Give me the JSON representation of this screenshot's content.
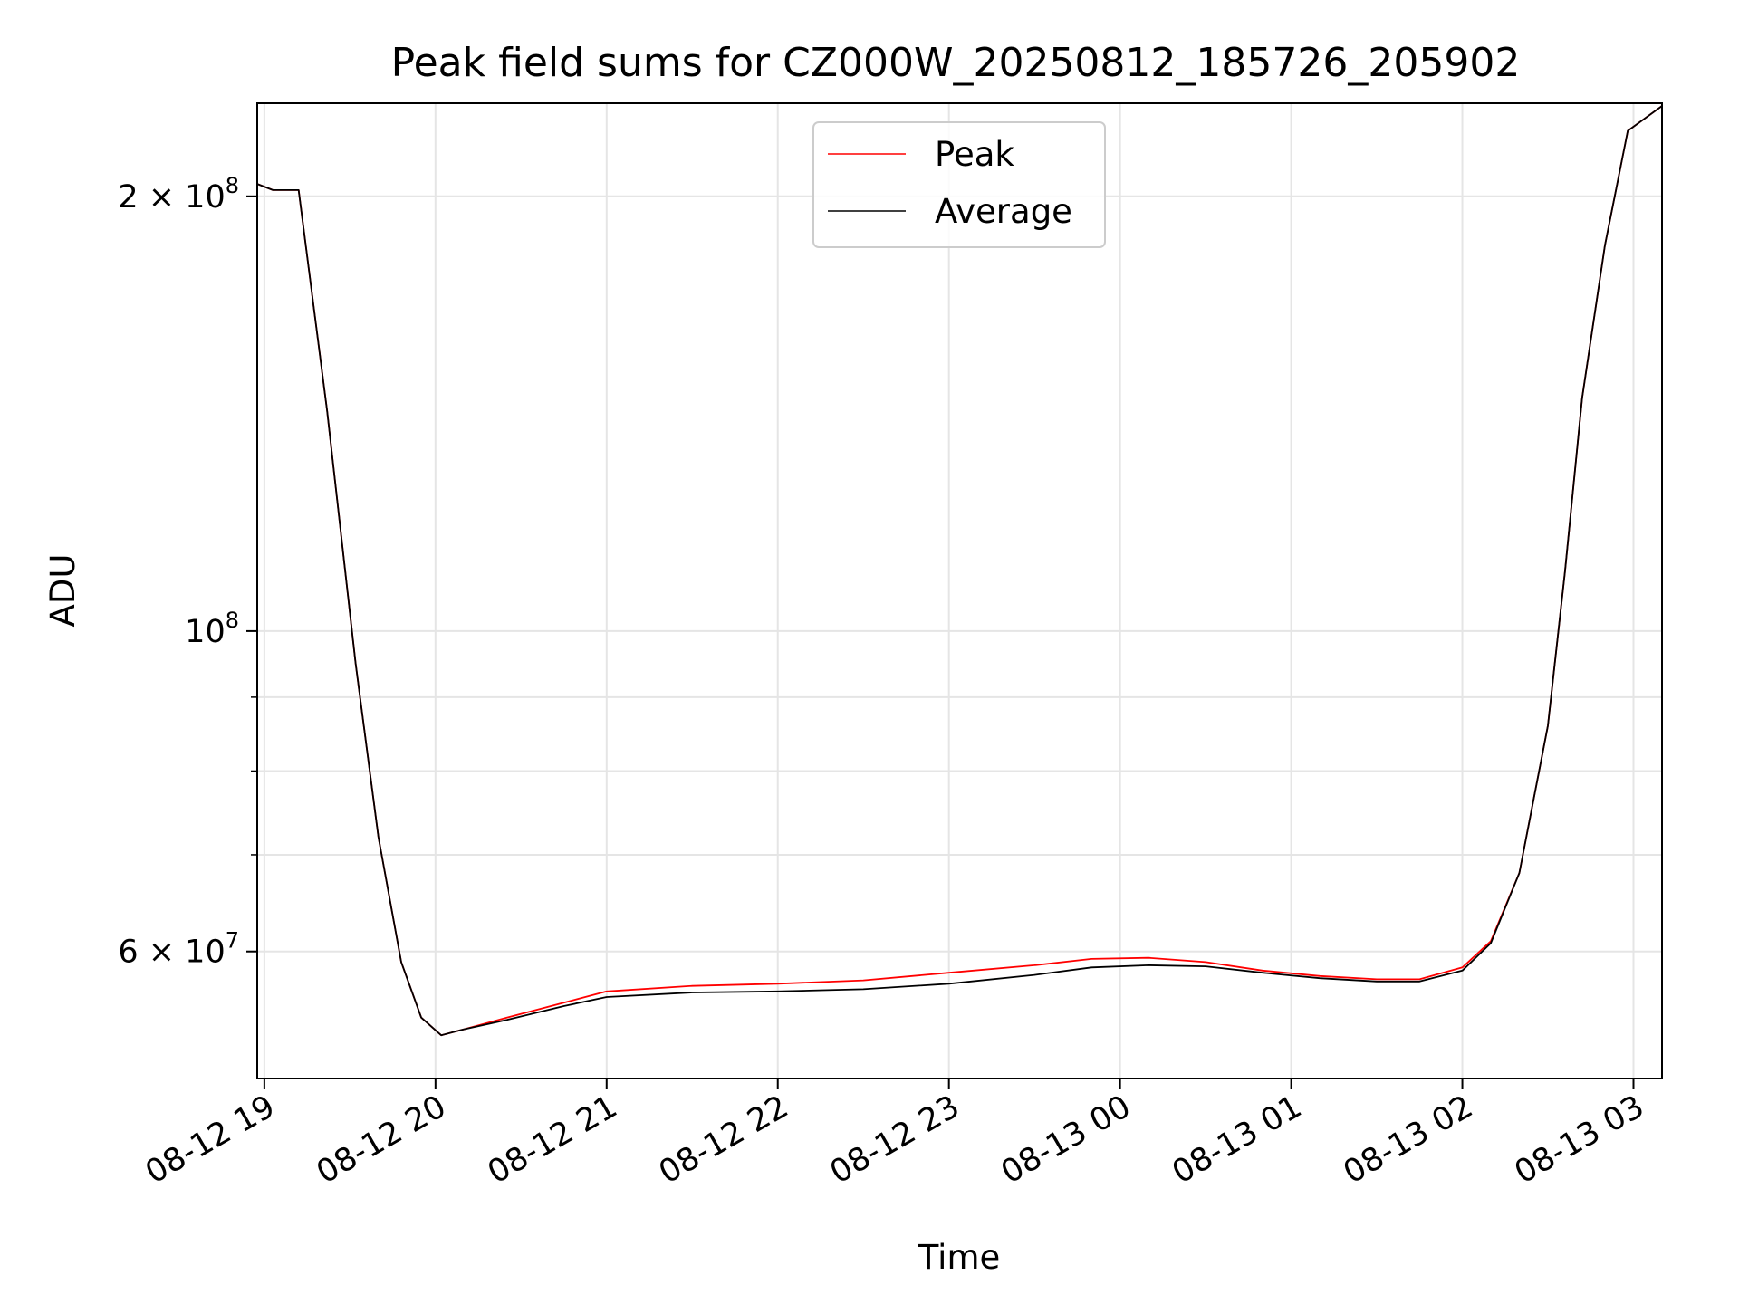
{
  "chart_data": {
    "type": "line",
    "title": "Peak field sums for CZ000W_20250812_185726_205902",
    "xlabel": "Time",
    "ylabel": "ADU",
    "y_scale": "log",
    "ylim": [
      49000000,
      232000000
    ],
    "xlim": [
      "2025-08-12 18:57:30",
      "2025-08-13 03:10:00"
    ],
    "grid": true,
    "legend_position": "upper center",
    "x_ticks": [
      {
        "value": "2025-08-12 19:00",
        "label": "08-12 19"
      },
      {
        "value": "2025-08-12 20:00",
        "label": "08-12 20"
      },
      {
        "value": "2025-08-12 21:00",
        "label": "08-12 21"
      },
      {
        "value": "2025-08-12 22:00",
        "label": "08-12 22"
      },
      {
        "value": "2025-08-12 23:00",
        "label": "08-12 23"
      },
      {
        "value": "2025-08-13 00:00",
        "label": "08-13 00"
      },
      {
        "value": "2025-08-13 01:00",
        "label": "08-13 01"
      },
      {
        "value": "2025-08-13 02:00",
        "label": "08-13 02"
      },
      {
        "value": "2025-08-13 03:00",
        "label": "08-13 03"
      }
    ],
    "y_ticks": [
      {
        "value": 200000000,
        "base": "2 × 10",
        "exp": "8"
      },
      {
        "value": 100000000,
        "base": "10",
        "exp": "8"
      },
      {
        "value": 60000000,
        "base": "6 × 10",
        "exp": "7"
      }
    ],
    "y_minor_ticks": [
      70000000,
      80000000,
      90000000
    ],
    "series": [
      {
        "name": "Peak",
        "color": "#ff0000",
        "x": [
          "2025-08-12 18:57:30",
          "2025-08-12 19:03:00",
          "2025-08-12 19:12:00",
          "2025-08-12 19:22:00",
          "2025-08-12 19:32:00",
          "2025-08-12 19:40:00",
          "2025-08-12 19:48:00",
          "2025-08-12 19:55:00",
          "2025-08-12 20:02:00",
          "2025-08-12 20:10:00",
          "2025-08-12 20:25:00",
          "2025-08-12 20:45:00",
          "2025-08-12 21:00:00",
          "2025-08-12 21:30:00",
          "2025-08-12 22:00:00",
          "2025-08-12 22:30:00",
          "2025-08-12 23:00:00",
          "2025-08-12 23:30:00",
          "2025-08-12 23:50:00",
          "2025-08-13 00:10:00",
          "2025-08-13 00:30:00",
          "2025-08-13 00:50:00",
          "2025-08-13 01:10:00",
          "2025-08-13 01:30:00",
          "2025-08-13 01:45:00",
          "2025-08-13 02:00:00",
          "2025-08-13 02:10:00",
          "2025-08-13 02:20:00",
          "2025-08-13 02:30:00",
          "2025-08-13 02:36:00",
          "2025-08-13 02:42:00",
          "2025-08-13 02:50:00",
          "2025-08-13 02:58:00",
          "2025-08-13 03:10:00"
        ],
        "y": [
          204000000,
          202000000,
          202000000,
          142000000,
          95000000,
          72000000,
          59000000,
          54000000,
          52500000,
          53000000,
          54000000,
          55300000,
          56300000,
          56800000,
          57000000,
          57300000,
          58000000,
          58700000,
          59300000,
          59400000,
          59000000,
          58200000,
          57700000,
          57400000,
          57400000,
          58500000,
          61000000,
          68000000,
          86000000,
          110000000,
          145000000,
          185000000,
          222000000,
          231000000
        ]
      },
      {
        "name": "Average",
        "color": "#000000",
        "x": [
          "2025-08-12 18:57:30",
          "2025-08-12 19:03:00",
          "2025-08-12 19:12:00",
          "2025-08-12 19:22:00",
          "2025-08-12 19:32:00",
          "2025-08-12 19:40:00",
          "2025-08-12 19:48:00",
          "2025-08-12 19:55:00",
          "2025-08-12 20:02:00",
          "2025-08-12 20:10:00",
          "2025-08-12 20:25:00",
          "2025-08-12 20:45:00",
          "2025-08-12 21:00:00",
          "2025-08-12 21:30:00",
          "2025-08-12 22:00:00",
          "2025-08-12 22:30:00",
          "2025-08-12 23:00:00",
          "2025-08-12 23:30:00",
          "2025-08-12 23:50:00",
          "2025-08-13 00:10:00",
          "2025-08-13 00:30:00",
          "2025-08-13 00:50:00",
          "2025-08-13 01:10:00",
          "2025-08-13 01:30:00",
          "2025-08-13 01:45:00",
          "2025-08-13 02:00:00",
          "2025-08-13 02:10:00",
          "2025-08-13 02:20:00",
          "2025-08-13 02:30:00",
          "2025-08-13 02:36:00",
          "2025-08-13 02:42:00",
          "2025-08-13 02:50:00",
          "2025-08-13 02:58:00",
          "2025-08-13 03:10:00"
        ],
        "y": [
          204000000,
          202000000,
          202000000,
          142000000,
          95000000,
          72000000,
          59000000,
          54000000,
          52500000,
          53000000,
          53800000,
          55000000,
          55800000,
          56200000,
          56300000,
          56500000,
          57000000,
          57800000,
          58500000,
          58700000,
          58600000,
          58000000,
          57500000,
          57200000,
          57200000,
          58200000,
          60800000,
          68000000,
          86000000,
          110000000,
          145000000,
          185000000,
          222000000,
          231000000
        ]
      }
    ]
  }
}
